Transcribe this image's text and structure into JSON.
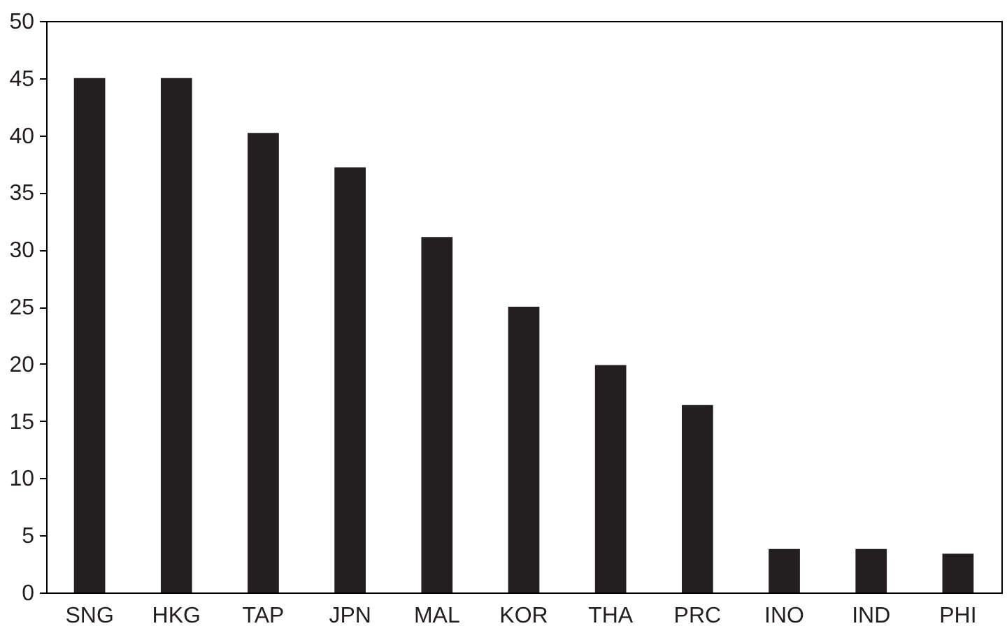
{
  "chart_data": {
    "type": "bar",
    "categories": [
      "SNG",
      "HKG",
      "TAP",
      "JPN",
      "MAL",
      "KOR",
      "THA",
      "PRC",
      "INO",
      "IND",
      "PHI"
    ],
    "values": [
      45,
      45,
      40.2,
      37.2,
      31.1,
      25,
      19.9,
      16.4,
      3.8,
      3.8,
      3.4
    ],
    "color": "#231f20",
    "ylim": [
      0,
      50
    ],
    "yticks": [
      0,
      5,
      10,
      15,
      20,
      25,
      30,
      35,
      40,
      45,
      50
    ],
    "grid": false
  }
}
